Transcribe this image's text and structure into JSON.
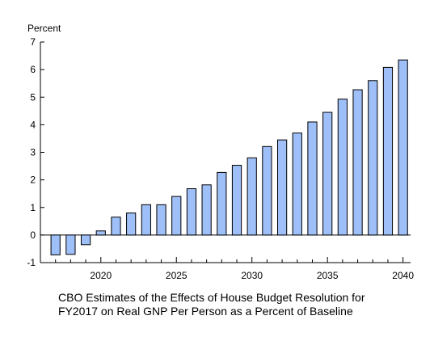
{
  "chart_data": {
    "type": "bar",
    "ylabel": "Percent",
    "ylim": [
      -1,
      7
    ],
    "yticks": [
      -1,
      0,
      1,
      2,
      3,
      4,
      5,
      6,
      7
    ],
    "xlim": [
      2016,
      2040.5
    ],
    "xtick_labels": [
      "2020",
      "2025",
      "2030",
      "2035",
      "2040"
    ],
    "x": [
      2017,
      2018,
      2019,
      2020,
      2021,
      2022,
      2023,
      2024,
      2025,
      2026,
      2027,
      2028,
      2029,
      2030,
      2031,
      2032,
      2033,
      2034,
      2035,
      2036,
      2037,
      2038,
      2039,
      2040
    ],
    "values": [
      -0.72,
      -0.7,
      -0.35,
      0.15,
      0.65,
      0.8,
      1.1,
      1.1,
      1.4,
      1.68,
      1.82,
      2.27,
      2.53,
      2.8,
      3.21,
      3.45,
      3.7,
      4.1,
      4.45,
      4.93,
      5.27,
      5.6,
      6.08,
      6.35
    ],
    "legend": "none",
    "grid": false
  },
  "caption": {
    "line1": "CBO Estimates of the Effects of House Budget Resolution for",
    "line2": "FY2017 on Real GNP Per Person as a Percent of Baseline"
  },
  "colors": {
    "bar_fill": "#9ebff7",
    "bar_stroke": "#000000",
    "axis": "#000000",
    "background": "#ffffff"
  }
}
